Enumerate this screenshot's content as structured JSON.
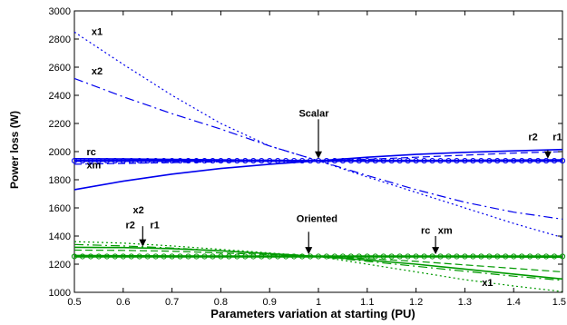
{
  "chart_data": {
    "type": "line",
    "xlabel": "Parameters variation at starting (PU)",
    "ylabel": "Power loss (W)",
    "xlim": [
      0.5,
      1.5
    ],
    "ylim": [
      1000,
      3000
    ],
    "xticks": [
      0.5,
      0.6,
      0.7,
      0.8,
      0.9,
      1,
      1.1,
      1.2,
      1.3,
      1.4,
      1.5
    ],
    "yticks": [
      1000,
      1200,
      1400,
      1600,
      1800,
      2000,
      2200,
      2400,
      2600,
      2800,
      3000
    ],
    "grid": false,
    "colors": {
      "scalar": "#0000ee",
      "oriented": "#009900"
    },
    "series": [
      {
        "name": "x1",
        "group": "scalar",
        "style": "dotted",
        "x": [
          0.5,
          0.6,
          0.7,
          0.8,
          0.9,
          1.0,
          1.1,
          1.2,
          1.3,
          1.4,
          1.5
        ],
        "y": [
          2850,
          2620,
          2400,
          2200,
          2040,
          1935,
          1820,
          1710,
          1600,
          1490,
          1390
        ]
      },
      {
        "name": "x2",
        "group": "scalar",
        "style": "dashdot",
        "x": [
          0.5,
          0.6,
          0.7,
          0.8,
          0.9,
          1.0,
          1.1,
          1.2,
          1.3,
          1.4,
          1.5
        ],
        "y": [
          2520,
          2390,
          2270,
          2160,
          2040,
          1935,
          1830,
          1730,
          1640,
          1570,
          1520
        ]
      },
      {
        "name": "rc",
        "group": "scalar",
        "style": "solid",
        "x": [
          0.5,
          0.6,
          0.7,
          0.8,
          0.9,
          1.0,
          1.1,
          1.2,
          1.3,
          1.4,
          1.5
        ],
        "y": [
          1950,
          1948,
          1945,
          1942,
          1938,
          1935,
          1935,
          1937,
          1938,
          1940,
          1942
        ]
      },
      {
        "name": "xm",
        "group": "scalar",
        "style": "markers",
        "x": [
          0.5,
          0.6,
          0.7,
          0.8,
          0.9,
          1.0,
          1.1,
          1.2,
          1.3,
          1.4,
          1.5
        ],
        "y": [
          1935,
          1935,
          1935,
          1935,
          1935,
          1935,
          1935,
          1935,
          1935,
          1935,
          1935
        ]
      },
      {
        "name": "r1",
        "group": "scalar",
        "style": "solid",
        "x": [
          0.5,
          0.6,
          0.7,
          0.8,
          0.9,
          1.0,
          1.1,
          1.2,
          1.3,
          1.4,
          1.5
        ],
        "y": [
          1730,
          1790,
          1840,
          1880,
          1910,
          1935,
          1960,
          1980,
          1995,
          2005,
          2015
        ]
      },
      {
        "name": "r2",
        "group": "scalar",
        "style": "dashed",
        "x": [
          0.5,
          0.6,
          0.7,
          0.8,
          0.9,
          1.0,
          1.1,
          1.2,
          1.3,
          1.4,
          1.5
        ],
        "y": [
          1910,
          1916,
          1922,
          1928,
          1932,
          1935,
          1945,
          1960,
          1975,
          1990,
          2000
        ]
      },
      {
        "name": "x1",
        "group": "oriented",
        "style": "dotted",
        "x": [
          0.5,
          0.6,
          0.7,
          0.8,
          0.9,
          1.0,
          1.1,
          1.2,
          1.3,
          1.4,
          1.5
        ],
        "y": [
          1360,
          1350,
          1330,
          1305,
          1280,
          1255,
          1200,
          1145,
          1090,
          1045,
          1005
        ]
      },
      {
        "name": "x2",
        "group": "oriented",
        "style": "dashdot",
        "x": [
          0.5,
          0.6,
          0.7,
          0.8,
          0.9,
          1.0,
          1.1,
          1.2,
          1.3,
          1.4,
          1.5
        ],
        "y": [
          1340,
          1330,
          1315,
          1295,
          1275,
          1255,
          1220,
          1185,
          1150,
          1115,
          1085
        ]
      },
      {
        "name": "r1",
        "group": "oriented",
        "style": "solid",
        "x": [
          0.5,
          0.6,
          0.7,
          0.8,
          0.9,
          1.0,
          1.1,
          1.2,
          1.3,
          1.4,
          1.5
        ],
        "y": [
          1320,
          1318,
          1310,
          1295,
          1275,
          1255,
          1230,
          1200,
          1165,
          1130,
          1095
        ]
      },
      {
        "name": "r2",
        "group": "oriented",
        "style": "dashed",
        "x": [
          0.5,
          0.6,
          0.7,
          0.8,
          0.9,
          1.0,
          1.1,
          1.2,
          1.3,
          1.4,
          1.5
        ],
        "y": [
          1300,
          1298,
          1292,
          1280,
          1268,
          1255,
          1240,
          1220,
          1195,
          1170,
          1145
        ]
      },
      {
        "name": "rc",
        "group": "oriented",
        "style": "solid",
        "x": [
          0.5,
          0.6,
          0.7,
          0.8,
          0.9,
          1.0,
          1.1,
          1.2,
          1.3,
          1.4,
          1.5
        ],
        "y": [
          1262,
          1260,
          1258,
          1256,
          1255,
          1255,
          1255,
          1254,
          1253,
          1252,
          1250
        ]
      },
      {
        "name": "xm",
        "group": "oriented",
        "style": "markers",
        "x": [
          0.5,
          0.6,
          0.7,
          0.8,
          0.9,
          1.0,
          1.1,
          1.2,
          1.3,
          1.4,
          1.5
        ],
        "y": [
          1255,
          1255,
          1255,
          1255,
          1255,
          1255,
          1255,
          1255,
          1255,
          1255,
          1255
        ]
      }
    ],
    "annotations": [
      {
        "text": "x1",
        "x": 0.535,
        "y": 2830
      },
      {
        "text": "x2",
        "x": 0.535,
        "y": 2550
      },
      {
        "text": "Scalar",
        "x": 0.96,
        "y": 2250
      },
      {
        "text": "rc",
        "x": 0.525,
        "y": 1975
      },
      {
        "text": "xm",
        "x": 0.525,
        "y": 1880
      },
      {
        "text": "r2",
        "x": 1.43,
        "y": 2080
      },
      {
        "text": "r1",
        "x": 1.48,
        "y": 2080
      },
      {
        "text": "x2",
        "x": 0.62,
        "y": 1560
      },
      {
        "text": "r2",
        "x": 0.605,
        "y": 1455
      },
      {
        "text": "r1",
        "x": 0.655,
        "y": 1455
      },
      {
        "text": "Oriented",
        "x": 0.955,
        "y": 1500
      },
      {
        "text": "rc",
        "x": 1.21,
        "y": 1415
      },
      {
        "text": "xm",
        "x": 1.245,
        "y": 1415
      },
      {
        "text": "x1",
        "x": 1.335,
        "y": 1045
      }
    ],
    "arrows": [
      {
        "x": 1.0,
        "y1": 2230,
        "y2": 1950
      },
      {
        "x": 1.47,
        "y1": 2010,
        "y2": 1950
      },
      {
        "x": 0.64,
        "y1": 1470,
        "y2": 1325
      },
      {
        "x": 0.98,
        "y1": 1430,
        "y2": 1270
      },
      {
        "x": 1.24,
        "y1": 1400,
        "y2": 1270
      }
    ]
  }
}
